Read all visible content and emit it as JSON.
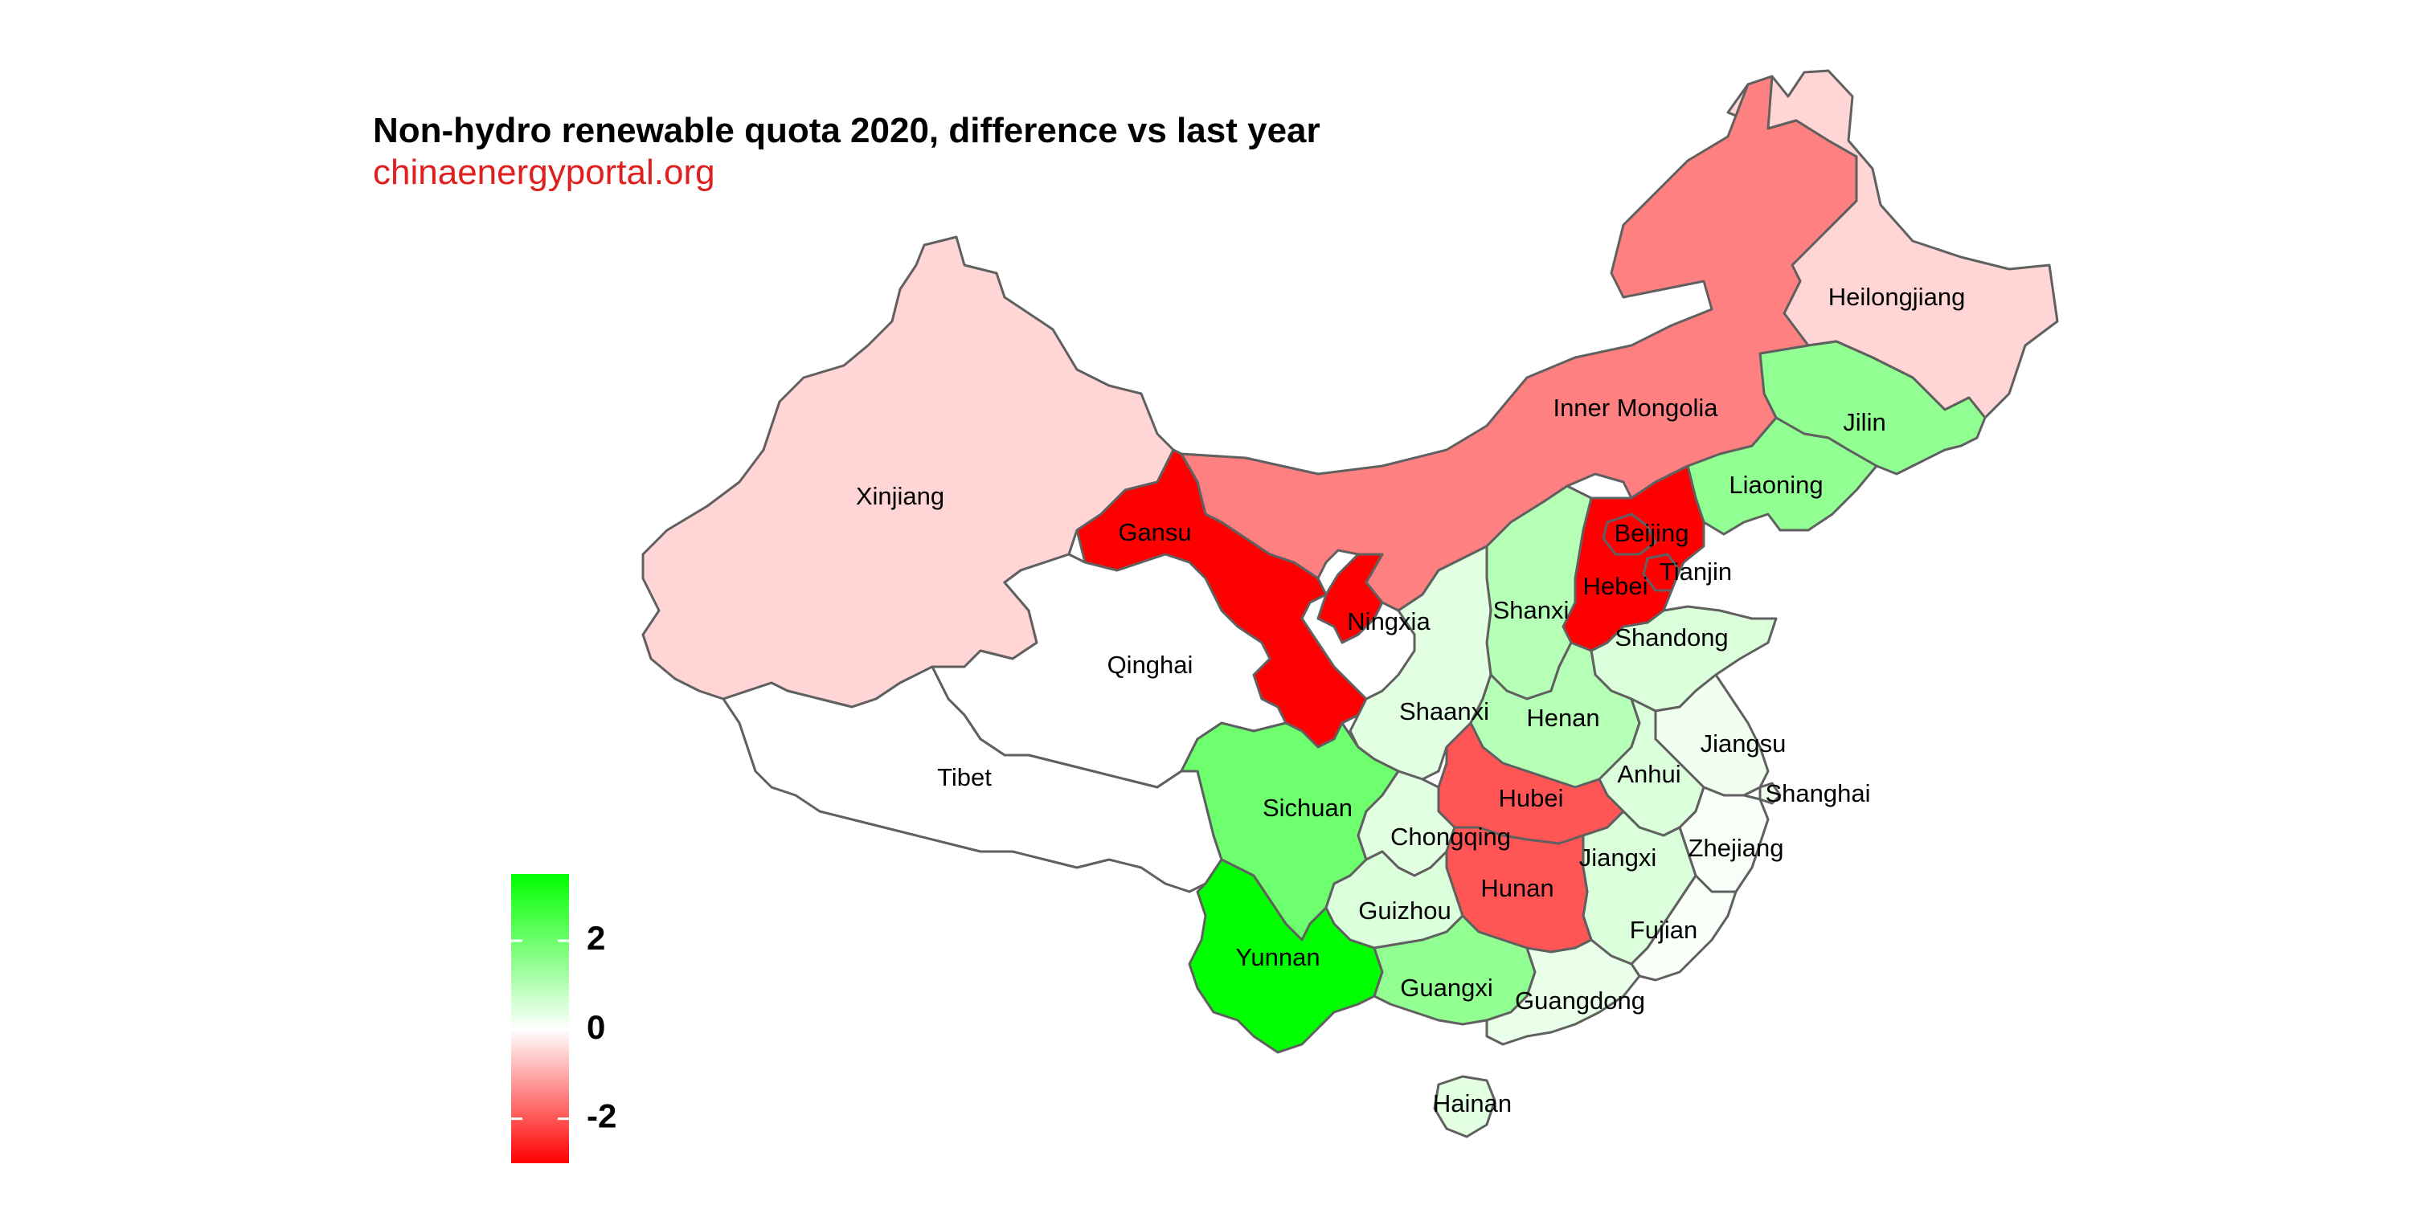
{
  "title": "Non-hydro renewable quota 2020, difference vs last year",
  "subtitle": "chinaenergyportal.org",
  "colors": {
    "subtitle": "#e0201f",
    "border": "#606060",
    "scale_low": "#ff0000",
    "scale_mid": "#ffffff",
    "scale_high": "#00ff00"
  },
  "legend": {
    "min": -3,
    "max": 3.5,
    "ticks": [
      {
        "value": 2,
        "label": "2"
      },
      {
        "value": 0,
        "label": "0"
      },
      {
        "value": -2,
        "label": "-2"
      }
    ]
  },
  "provinces": [
    {
      "name": "Heilongjiang",
      "value": -0.5
    },
    {
      "name": "Jilin",
      "value": 1.5
    },
    {
      "name": "Liaoning",
      "value": 1.5
    },
    {
      "name": "Inner Mongolia",
      "value": -1.5
    },
    {
      "name": "Beijing",
      "value": -3
    },
    {
      "name": "Tianjin",
      "value": -3
    },
    {
      "name": "Hebei",
      "value": -3
    },
    {
      "name": "Shanxi",
      "value": 1
    },
    {
      "name": "Shandong",
      "value": 0.5
    },
    {
      "name": "Xinjiang",
      "value": -0.5
    },
    {
      "name": "Gansu",
      "value": -3
    },
    {
      "name": "Ningxia",
      "value": -3
    },
    {
      "name": "Qinghai",
      "value": 0
    },
    {
      "name": "Tibet",
      "value": 0
    },
    {
      "name": "Shaanxi",
      "value": 0.4
    },
    {
      "name": "Henan",
      "value": 1
    },
    {
      "name": "Jiangsu",
      "value": 0.2
    },
    {
      "name": "Anhui",
      "value": 0.5
    },
    {
      "name": "Shanghai",
      "value": 0.2
    },
    {
      "name": "Hubei",
      "value": -2
    },
    {
      "name": "Sichuan",
      "value": 2
    },
    {
      "name": "Chongqing",
      "value": 0.4
    },
    {
      "name": "Zhejiang",
      "value": 0.1
    },
    {
      "name": "Jiangxi",
      "value": 0.5
    },
    {
      "name": "Hunan",
      "value": -2
    },
    {
      "name": "Guizhou",
      "value": 0.5
    },
    {
      "name": "Fujian",
      "value": 0.1
    },
    {
      "name": "Yunnan",
      "value": 3.5
    },
    {
      "name": "Guangxi",
      "value": 1.5
    },
    {
      "name": "Guangdong",
      "value": 0.3
    },
    {
      "name": "Hainan",
      "value": 0.4
    }
  ]
}
